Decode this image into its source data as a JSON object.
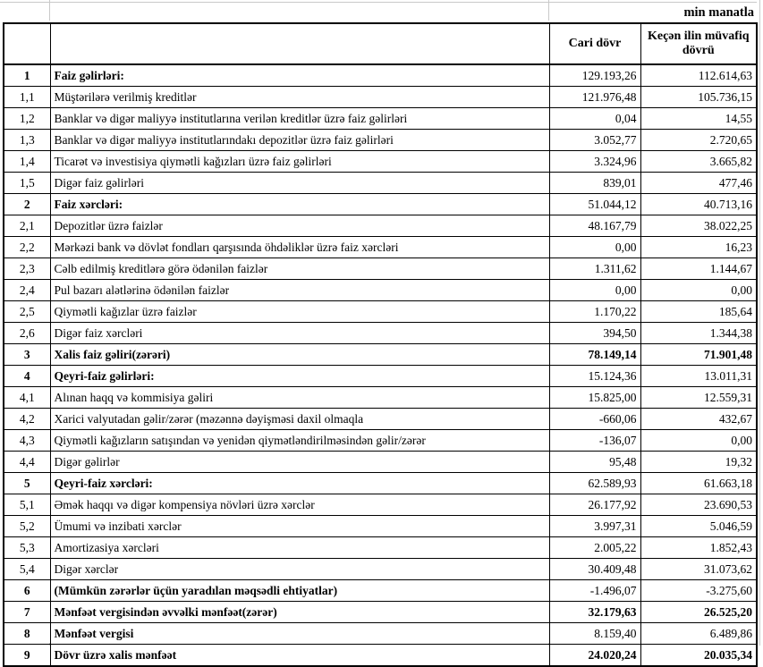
{
  "units_label": "min manatla",
  "header": {
    "current_period": "Cari dövr",
    "previous_period": "Keçən ilin müvafiq dövrü"
  },
  "rows": [
    {
      "no": "1",
      "label": "Faiz gəlirləri:",
      "current": "129.193,26",
      "previous": "112.614,63",
      "bold_label": true,
      "bold_values": false
    },
    {
      "no": "1,1",
      "label": "Müştərilərə verilmiş kreditlər",
      "current": "121.976,48",
      "previous": "105.736,15",
      "bold_label": false,
      "bold_values": false
    },
    {
      "no": "1,2",
      "label": "Banklar və digər maliyyə institutlarına verilən kreditlər üzrə faiz gəlirləri",
      "current": "0,04",
      "previous": "14,55",
      "bold_label": false,
      "bold_values": false
    },
    {
      "no": "1,3",
      "label": "Banklar və digər maliyyə institutlarındakı depozitlər üzrə faiz gəlirləri",
      "current": "3.052,77",
      "previous": "2.720,65",
      "bold_label": false,
      "bold_values": false
    },
    {
      "no": "1,4",
      "label": "Ticarət və investisiya qiymətli kağızları üzrə faiz gəlirləri",
      "current": "3.324,96",
      "previous": "3.665,82",
      "bold_label": false,
      "bold_values": false
    },
    {
      "no": "1,5",
      "label": "Digər faiz gəlirləri",
      "current": "839,01",
      "previous": "477,46",
      "bold_label": false,
      "bold_values": false
    },
    {
      "no": "2",
      "label": "Faiz xərcləri:",
      "current": "51.044,12",
      "previous": "40.713,16",
      "bold_label": true,
      "bold_values": false
    },
    {
      "no": "2,1",
      "label": "Depozitlər üzrə faizlər",
      "current": "48.167,79",
      "previous": "38.022,25",
      "bold_label": false,
      "bold_values": false
    },
    {
      "no": "2,2",
      "label": "Mərkəzi bank və dövlət fondları qarşısında öhdəliklər üzrə faiz xərcləri",
      "current": "0,00",
      "previous": "16,23",
      "bold_label": false,
      "bold_values": false
    },
    {
      "no": "2,3",
      "label": "Cəlb edilmiş kreditlərə görə ödənilən faizlər",
      "current": "1.311,62",
      "previous": "1.144,67",
      "bold_label": false,
      "bold_values": false
    },
    {
      "no": "2,4",
      "label": "Pul bazarı alətlərinə ödənilən faizlər",
      "current": "0,00",
      "previous": "0,00",
      "bold_label": false,
      "bold_values": false
    },
    {
      "no": "2,5",
      "label": "Qiymətli kağızlar üzrə faizlər",
      "current": "1.170,22",
      "previous": "185,64",
      "bold_label": false,
      "bold_values": false
    },
    {
      "no": "2,6",
      "label": "Digər faiz xərcləri",
      "current": "394,50",
      "previous": "1.344,38",
      "bold_label": false,
      "bold_values": false
    },
    {
      "no": "3",
      "label": "Xalis faiz gəliri(zərəri)",
      "current": "78.149,14",
      "previous": "71.901,48",
      "bold_label": true,
      "bold_values": true
    },
    {
      "no": "4",
      "label": "Qeyri-faiz gəlirləri:",
      "current": "15.124,36",
      "previous": "13.011,31",
      "bold_label": true,
      "bold_values": false
    },
    {
      "no": "4,1",
      "label": "Alınan haqq və kommisiya gəliri",
      "current": "15.825,00",
      "previous": "12.559,31",
      "bold_label": false,
      "bold_values": false
    },
    {
      "no": "4,2",
      "label": "Xarici valyutadan gəlir/zərər (məzənnə dəyişməsi daxil olmaqla",
      "current": "-660,06",
      "previous": "432,67",
      "bold_label": false,
      "bold_values": false
    },
    {
      "no": "4,3",
      "label": "Qiymətli kağızların satışından və yenidən qiymətləndirilməsindən gəlir/zərər",
      "current": "-136,07",
      "previous": "0,00",
      "bold_label": false,
      "bold_values": false
    },
    {
      "no": "4,4",
      "label": "Digər gəlirlər",
      "current": "95,48",
      "previous": "19,32",
      "bold_label": false,
      "bold_values": false
    },
    {
      "no": "5",
      "label": "Qeyri-faiz xərcləri:",
      "current": "62.589,93",
      "previous": "61.663,18",
      "bold_label": true,
      "bold_values": false
    },
    {
      "no": "5,1",
      "label": "Əmək haqqı və digər kompensiya növləri üzrə xərclər",
      "current": "26.177,92",
      "previous": "23.690,53",
      "bold_label": false,
      "bold_values": false
    },
    {
      "no": "5,2",
      "label": "Ümumi və inzibati xərclər",
      "current": "3.997,31",
      "previous": "5.046,59",
      "bold_label": false,
      "bold_values": false
    },
    {
      "no": "5,3",
      "label": "Amortizasiya xərcləri",
      "current": "2.005,22",
      "previous": "1.852,43",
      "bold_label": false,
      "bold_values": false
    },
    {
      "no": "5,4",
      "label": "Digər xərclər",
      "current": "30.409,48",
      "previous": "31.073,62",
      "bold_label": false,
      "bold_values": false
    },
    {
      "no": "6",
      "label": "(Mümkün zərərlər üçün yaradılan məqsədli ehtiyatlar)",
      "current": "-1.496,07",
      "previous": "-3.275,60",
      "bold_label": true,
      "bold_values": false
    },
    {
      "no": "7",
      "label": "Mənfəət vergisindən əvvəlki mənfəət(zərər)",
      "current": "32.179,63",
      "previous": "26.525,20",
      "bold_label": true,
      "bold_values": true
    },
    {
      "no": "8",
      "label": "Mənfəət vergisi",
      "current": "8.159,40",
      "previous": "6.489,86",
      "bold_label": true,
      "bold_values": false
    },
    {
      "no": "9",
      "label": "Dövr üzrə xalis mənfəət",
      "current": "24.020,24",
      "previous": "20.035,34",
      "bold_label": true,
      "bold_values": true
    }
  ]
}
